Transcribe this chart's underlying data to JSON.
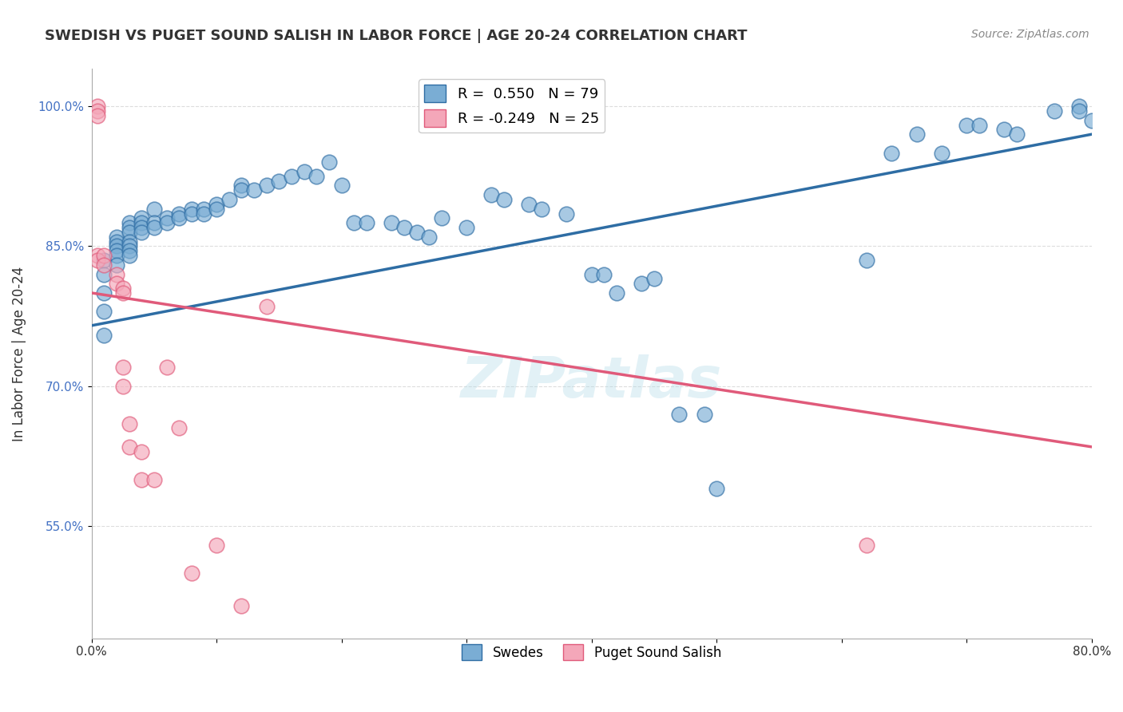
{
  "title": "SWEDISH VS PUGET SOUND SALISH IN LABOR FORCE | AGE 20-24 CORRELATION CHART",
  "source": "Source: ZipAtlas.com",
  "xlabel": "",
  "ylabel": "In Labor Force | Age 20-24",
  "xlim": [
    0.0,
    0.8
  ],
  "ylim": [
    0.43,
    1.04
  ],
  "xticks": [
    0.0,
    0.1,
    0.2,
    0.3,
    0.4,
    0.5,
    0.6,
    0.7,
    0.8
  ],
  "xticklabels": [
    "0.0%",
    "",
    "",
    "",
    "",
    "",
    "",
    "",
    "80.0%"
  ],
  "yticks": [
    0.55,
    0.7,
    0.85,
    1.0
  ],
  "yticklabels": [
    "55.0%",
    "70.0%",
    "85.0%",
    "100.0%"
  ],
  "ytick_color": "#4472c4",
  "background_color": "#ffffff",
  "grid_color": "#dddddd",
  "blue_color": "#7aadd4",
  "pink_color": "#f4a7b9",
  "blue_line_color": "#2e6da4",
  "pink_line_color": "#e05a7a",
  "legend_R_blue": "R =  0.550",
  "legend_N_blue": "N = 79",
  "legend_R_pink": "R = -0.249",
  "legend_N_pink": "N = 25",
  "legend_label_blue": "Swedes",
  "legend_label_pink": "Puget Sound Salish",
  "watermark": "ZIPatlas",
  "blue_x": [
    0.01,
    0.01,
    0.01,
    0.01,
    0.01,
    0.02,
    0.02,
    0.02,
    0.02,
    0.02,
    0.02,
    0.03,
    0.03,
    0.03,
    0.03,
    0.03,
    0.03,
    0.03,
    0.04,
    0.04,
    0.04,
    0.04,
    0.05,
    0.05,
    0.05,
    0.06,
    0.06,
    0.07,
    0.07,
    0.08,
    0.08,
    0.09,
    0.09,
    0.1,
    0.1,
    0.11,
    0.12,
    0.12,
    0.13,
    0.14,
    0.15,
    0.16,
    0.17,
    0.18,
    0.19,
    0.2,
    0.21,
    0.22,
    0.24,
    0.25,
    0.26,
    0.27,
    0.28,
    0.3,
    0.32,
    0.33,
    0.35,
    0.36,
    0.38,
    0.4,
    0.41,
    0.42,
    0.44,
    0.45,
    0.47,
    0.49,
    0.5,
    0.62,
    0.64,
    0.66,
    0.68,
    0.7,
    0.71,
    0.73,
    0.74,
    0.77,
    0.79,
    0.79,
    0.8
  ],
  "blue_y": [
    0.835,
    0.82,
    0.8,
    0.78,
    0.755,
    0.86,
    0.855,
    0.85,
    0.845,
    0.84,
    0.83,
    0.875,
    0.87,
    0.865,
    0.855,
    0.85,
    0.845,
    0.84,
    0.88,
    0.875,
    0.87,
    0.865,
    0.89,
    0.875,
    0.87,
    0.88,
    0.875,
    0.885,
    0.88,
    0.89,
    0.885,
    0.89,
    0.885,
    0.895,
    0.89,
    0.9,
    0.915,
    0.91,
    0.91,
    0.915,
    0.92,
    0.925,
    0.93,
    0.925,
    0.94,
    0.915,
    0.875,
    0.875,
    0.875,
    0.87,
    0.865,
    0.86,
    0.88,
    0.87,
    0.905,
    0.9,
    0.895,
    0.89,
    0.885,
    0.82,
    0.82,
    0.8,
    0.81,
    0.815,
    0.67,
    0.67,
    0.59,
    0.835,
    0.95,
    0.97,
    0.95,
    0.98,
    0.98,
    0.975,
    0.97,
    0.995,
    1.0,
    0.995,
    0.985
  ],
  "pink_x": [
    0.005,
    0.005,
    0.005,
    0.005,
    0.005,
    0.01,
    0.01,
    0.02,
    0.02,
    0.025,
    0.025,
    0.025,
    0.025,
    0.03,
    0.03,
    0.04,
    0.04,
    0.05,
    0.06,
    0.07,
    0.08,
    0.1,
    0.12,
    0.14,
    0.62
  ],
  "pink_y": [
    1.0,
    0.995,
    0.99,
    0.84,
    0.835,
    0.84,
    0.83,
    0.82,
    0.81,
    0.805,
    0.8,
    0.72,
    0.7,
    0.66,
    0.635,
    0.63,
    0.6,
    0.6,
    0.72,
    0.655,
    0.5,
    0.53,
    0.465,
    0.785,
    0.53
  ],
  "blue_line_x": [
    0.0,
    0.8
  ],
  "blue_line_y": [
    0.765,
    0.97
  ],
  "pink_line_x": [
    0.0,
    0.8
  ],
  "pink_line_y": [
    0.8,
    0.635
  ]
}
